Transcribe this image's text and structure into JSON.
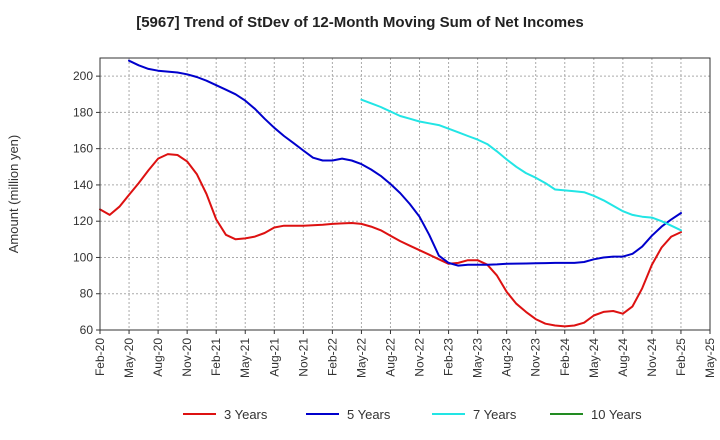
{
  "chart_data": {
    "type": "line",
    "title": "[5967]  Trend of StDev of 12-Month Moving Sum of Net Incomes",
    "ylabel": "Amount (million yen)",
    "xlabel": "",
    "ylim": [
      60,
      210
    ],
    "yticks": [
      60,
      80,
      100,
      120,
      140,
      160,
      180,
      200
    ],
    "grid": true,
    "legend_position": "bottom",
    "x_ticks": [
      "Feb-20",
      "May-20",
      "Aug-20",
      "Nov-20",
      "Feb-21",
      "May-21",
      "Aug-21",
      "Nov-21",
      "Feb-22",
      "May-22",
      "Aug-22",
      "Nov-22",
      "Feb-23",
      "May-23",
      "Aug-23",
      "Nov-23",
      "Feb-24",
      "May-24",
      "Aug-24",
      "Nov-24",
      "Feb-25",
      "May-25"
    ],
    "series": [
      {
        "name": "3 Years",
        "color": "#dd1111",
        "points": [
          [
            "Feb-20",
            126.5
          ],
          [
            "Mar-20",
            123.5
          ],
          [
            "Apr-20",
            128
          ],
          [
            "May-20",
            134.5
          ],
          [
            "Jun-20",
            141
          ],
          [
            "Jul-20",
            148
          ],
          [
            "Aug-20",
            154.5
          ],
          [
            "Sep-20",
            157
          ],
          [
            "Oct-20",
            156.5
          ],
          [
            "Nov-20",
            153
          ],
          [
            "Dec-20",
            146
          ],
          [
            "Jan-21",
            135
          ],
          [
            "Feb-21",
            121
          ],
          [
            "Mar-21",
            112.5
          ],
          [
            "Apr-21",
            110
          ],
          [
            "May-21",
            110.5
          ],
          [
            "Jun-21",
            111.5
          ],
          [
            "Jul-21",
            113.5
          ],
          [
            "Aug-21",
            116.5
          ],
          [
            "Sep-21",
            117.5
          ],
          [
            "Oct-21",
            117.5
          ],
          [
            "Nov-21",
            117.5
          ],
          [
            "Dec-21",
            117.8
          ],
          [
            "Jan-22",
            118
          ],
          [
            "Feb-22",
            118.5
          ],
          [
            "Mar-22",
            118.8
          ],
          [
            "Apr-22",
            119
          ],
          [
            "May-22",
            118.5
          ],
          [
            "Jun-22",
            117
          ],
          [
            "Jul-22",
            115
          ],
          [
            "Aug-22",
            112
          ],
          [
            "Sep-22",
            109
          ],
          [
            "Oct-22",
            106.5
          ],
          [
            "Nov-22",
            104
          ],
          [
            "Dec-22",
            101.5
          ],
          [
            "Jan-23",
            99
          ],
          [
            "Feb-23",
            96.5
          ],
          [
            "Mar-23",
            97
          ],
          [
            "Apr-23",
            98.5
          ],
          [
            "May-23",
            98.5
          ],
          [
            "Jun-23",
            96
          ],
          [
            "Jul-23",
            90
          ],
          [
            "Aug-23",
            81
          ],
          [
            "Sep-23",
            74.5
          ],
          [
            "Oct-23",
            70
          ],
          [
            "Nov-23",
            66
          ],
          [
            "Dec-23",
            63.5
          ],
          [
            "Jan-24",
            62.5
          ],
          [
            "Feb-24",
            62
          ],
          [
            "Mar-24",
            62.5
          ],
          [
            "Apr-24",
            64
          ],
          [
            "May-24",
            68
          ],
          [
            "Jun-24",
            70
          ],
          [
            "Jul-24",
            70.5
          ],
          [
            "Aug-24",
            69
          ],
          [
            "Sep-24",
            73
          ],
          [
            "Oct-24",
            83
          ],
          [
            "Nov-24",
            96
          ],
          [
            "Dec-24",
            105.5
          ],
          [
            "Jan-25",
            111.5
          ],
          [
            "Feb-25",
            114
          ]
        ]
      },
      {
        "name": "5 Years",
        "color": "#0000cc",
        "points": [
          [
            "May-20",
            208.5
          ],
          [
            "Jun-20",
            206
          ],
          [
            "Jul-20",
            204
          ],
          [
            "Aug-20",
            203
          ],
          [
            "Sep-20",
            202.5
          ],
          [
            "Oct-20",
            202
          ],
          [
            "Nov-20",
            201
          ],
          [
            "Dec-20",
            199.5
          ],
          [
            "Jan-21",
            197.5
          ],
          [
            "Feb-21",
            195
          ],
          [
            "Mar-21",
            192.5
          ],
          [
            "Apr-21",
            190
          ],
          [
            "May-21",
            186.5
          ],
          [
            "Jun-21",
            182
          ],
          [
            "Jul-21",
            176.5
          ],
          [
            "Aug-21",
            171.5
          ],
          [
            "Sep-21",
            167
          ],
          [
            "Oct-21",
            163
          ],
          [
            "Nov-21",
            159
          ],
          [
            "Dec-21",
            155
          ],
          [
            "Jan-22",
            153.5
          ],
          [
            "Feb-22",
            153.5
          ],
          [
            "Mar-22",
            154.5
          ],
          [
            "Apr-22",
            153.5
          ],
          [
            "May-22",
            151.5
          ],
          [
            "Jun-22",
            148.5
          ],
          [
            "Jul-22",
            145
          ],
          [
            "Aug-22",
            140.5
          ],
          [
            "Sep-22",
            135.5
          ],
          [
            "Oct-22",
            129.5
          ],
          [
            "Nov-22",
            122.5
          ],
          [
            "Dec-22",
            112.5
          ],
          [
            "Jan-23",
            101
          ],
          [
            "Feb-23",
            97
          ],
          [
            "Mar-23",
            95.5
          ],
          [
            "Apr-23",
            96
          ],
          [
            "May-23",
            96
          ],
          [
            "Jun-23",
            96
          ],
          [
            "Jul-23",
            96.2
          ],
          [
            "Aug-23",
            96.5
          ],
          [
            "Sep-23",
            96.6
          ],
          [
            "Oct-23",
            96.7
          ],
          [
            "Nov-23",
            96.8
          ],
          [
            "Dec-23",
            96.9
          ],
          [
            "Jan-24",
            97
          ],
          [
            "Feb-24",
            97
          ],
          [
            "Mar-24",
            97
          ],
          [
            "Apr-24",
            97.5
          ],
          [
            "May-24",
            99
          ],
          [
            "Jun-24",
            100
          ],
          [
            "Jul-24",
            100.5
          ],
          [
            "Aug-24",
            100.5
          ],
          [
            "Sep-24",
            102
          ],
          [
            "Oct-24",
            106
          ],
          [
            "Nov-24",
            112
          ],
          [
            "Dec-24",
            117
          ],
          [
            "Jan-25",
            121
          ],
          [
            "Feb-25",
            124.5
          ]
        ]
      },
      {
        "name": "7 Years",
        "color": "#22e5e5",
        "points": [
          [
            "May-22",
            187
          ],
          [
            "Jun-22",
            185
          ],
          [
            "Jul-22",
            183
          ],
          [
            "Aug-22",
            180.5
          ],
          [
            "Sep-22",
            178
          ],
          [
            "Oct-22",
            176.5
          ],
          [
            "Nov-22",
            175
          ],
          [
            "Dec-22",
            174
          ],
          [
            "Jan-23",
            173
          ],
          [
            "Feb-23",
            171
          ],
          [
            "Mar-23",
            169
          ],
          [
            "Apr-23",
            167
          ],
          [
            "May-23",
            165
          ],
          [
            "Jun-23",
            162.5
          ],
          [
            "Jul-23",
            158.5
          ],
          [
            "Aug-23",
            154
          ],
          [
            "Sep-23",
            150
          ],
          [
            "Oct-23",
            146.5
          ],
          [
            "Nov-23",
            144
          ],
          [
            "Dec-23",
            141
          ],
          [
            "Jan-24",
            137.5
          ],
          [
            "Feb-24",
            137
          ],
          [
            "Mar-24",
            136.5
          ],
          [
            "Apr-24",
            136
          ],
          [
            "May-24",
            134
          ],
          [
            "Jun-24",
            131.5
          ],
          [
            "Jul-24",
            128.5
          ],
          [
            "Aug-24",
            125.5
          ],
          [
            "Sep-24",
            123.5
          ],
          [
            "Oct-24",
            122.5
          ],
          [
            "Nov-24",
            122
          ],
          [
            "Dec-24",
            120
          ],
          [
            "Jan-25",
            117.5
          ],
          [
            "Feb-25",
            115
          ]
        ]
      },
      {
        "name": "10 Years",
        "color": "#228b22",
        "points": []
      }
    ]
  }
}
